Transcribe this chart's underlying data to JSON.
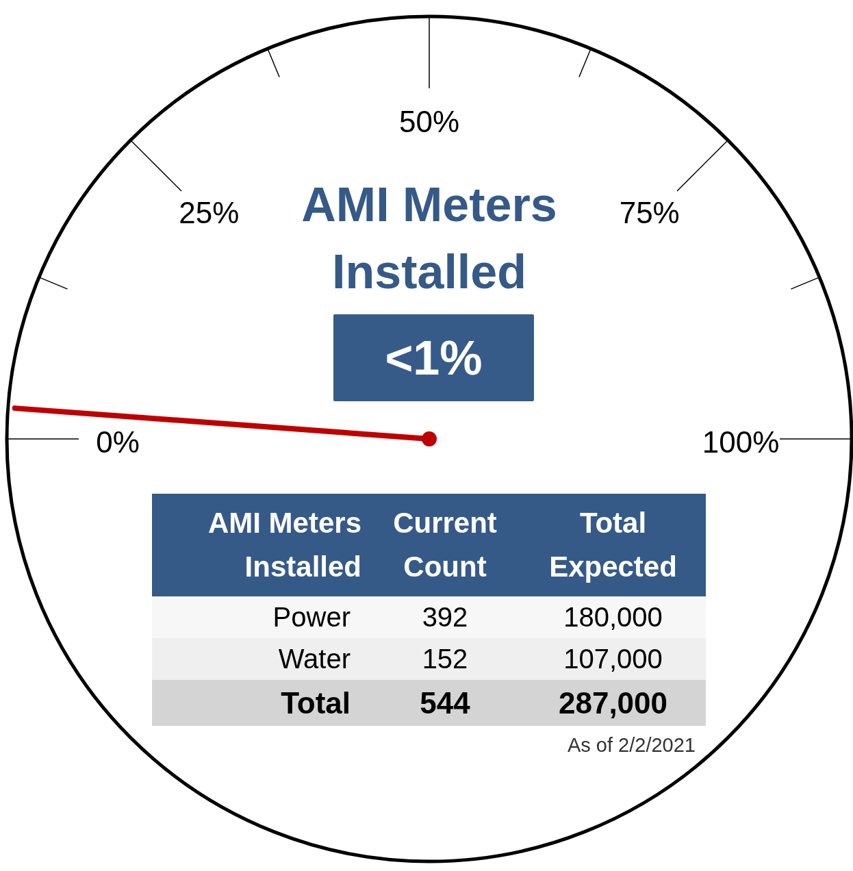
{
  "chart_data": {
    "type": "other",
    "title": "AMI Meters Installed",
    "xlabel": "AMI Meters Installed",
    "categories": [
      "Power",
      "Water",
      "Total"
    ],
    "series": [
      {
        "name": "Current Count",
        "colors": [
          "#f7f7f7",
          "#efefef",
          "#d4d4d4"
        ],
        "values": [
          392,
          152,
          544
        ]
      },
      {
        "name": "Total Expected",
        "colors": [
          "#f7f7f7",
          "#efefef",
          "#d4d4d4"
        ],
        "values": [
          180000,
          107000,
          287000
        ],
        "value_labels": [
          "180,000",
          "107,000",
          "287,000"
        ]
      }
    ],
    "data_labels": true,
    "annotations": [
      "0%",
      "25%",
      "50%",
      "75%",
      "100%",
      "<1%",
      "As of 2/2/2021"
    ]
  }
}
